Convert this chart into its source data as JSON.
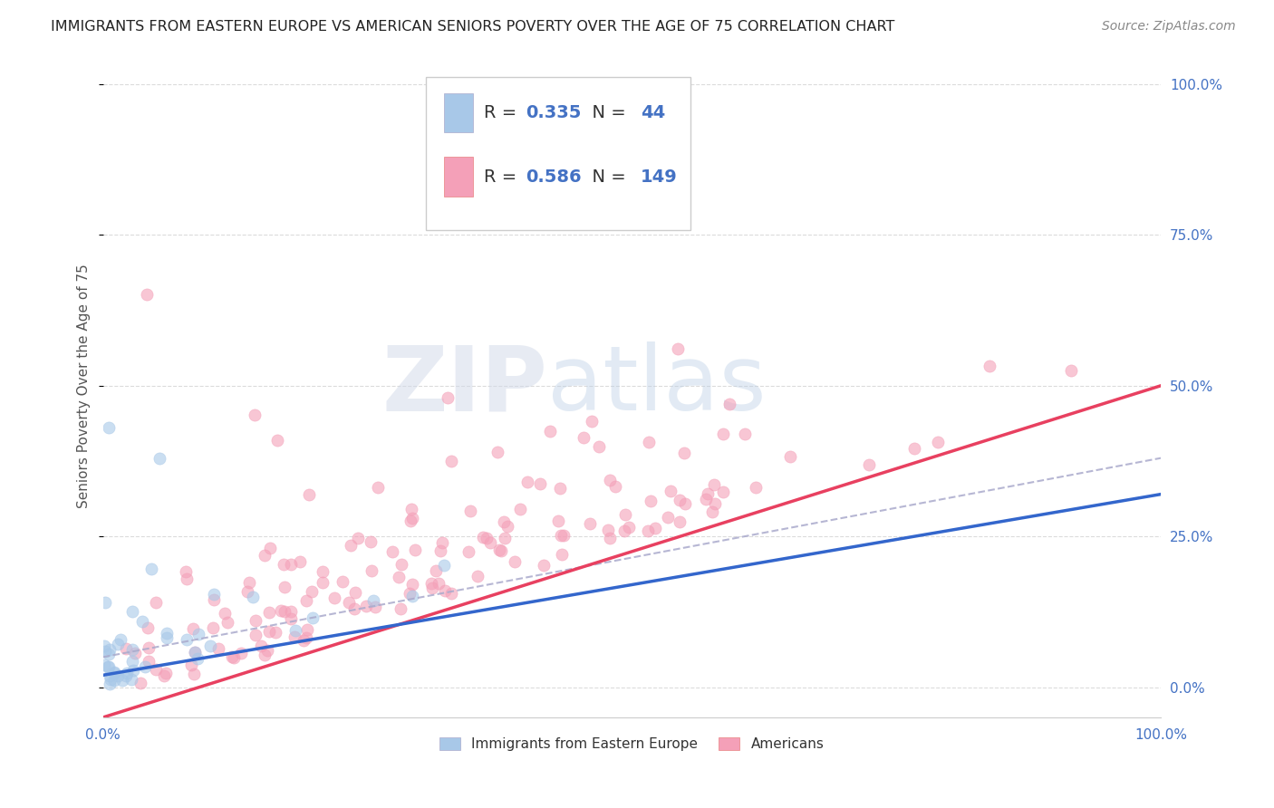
{
  "title": "IMMIGRANTS FROM EASTERN EUROPE VS AMERICAN SENIORS POVERTY OVER THE AGE OF 75 CORRELATION CHART",
  "source": "Source: ZipAtlas.com",
  "ylabel": "Seniors Poverty Over the Age of 75",
  "legend_label_blue": "Immigrants from Eastern Europe",
  "legend_label_pink": "Americans",
  "R_blue": 0.335,
  "N_blue": 44,
  "R_pink": 0.586,
  "N_pink": 149,
  "blue_color": "#a8c8e8",
  "pink_color": "#f4a0b8",
  "blue_line_color": "#3366cc",
  "pink_line_color": "#e84060",
  "dashed_line_color": "#aaaacc",
  "xlim": [
    0.0,
    1.0
  ],
  "ylim": [
    -0.05,
    1.05
  ],
  "xticks": [
    0.0,
    1.0
  ],
  "xticklabels": [
    "0.0%",
    "100.0%"
  ],
  "yticks": [
    0.0,
    0.25,
    0.5,
    0.75,
    1.0
  ],
  "yticklabels_right": [
    "0.0%",
    "25.0%",
    "50.0%",
    "75.0%",
    "100.0%"
  ],
  "right_tick_color": "#4472c4",
  "watermark_zip": "ZIP",
  "watermark_atlas": "atlas",
  "background_color": "#ffffff",
  "grid_color": "#cccccc",
  "title_fontsize": 11.5,
  "source_fontsize": 10,
  "legend_box_color": "#f0f0f8"
}
